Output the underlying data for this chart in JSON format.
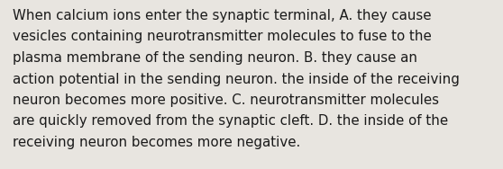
{
  "text_lines": [
    "When calcium ions enter the synaptic terminal, A. they cause",
    "vesicles containing neurotransmitter molecules to fuse to the",
    "plasma membrane of the sending neuron. B. they cause an",
    "action potential in the sending neuron. the inside of the receiving",
    "neuron becomes more positive. C. neurotransmitter molecules",
    "are quickly removed from the synaptic cleft. D. the inside of the",
    "receiving neuron becomes more negative."
  ],
  "background_color": "#e8e5e0",
  "text_color": "#1a1a1a",
  "font_size": 10.8,
  "fig_width": 5.58,
  "fig_height": 1.88,
  "dpi": 100
}
